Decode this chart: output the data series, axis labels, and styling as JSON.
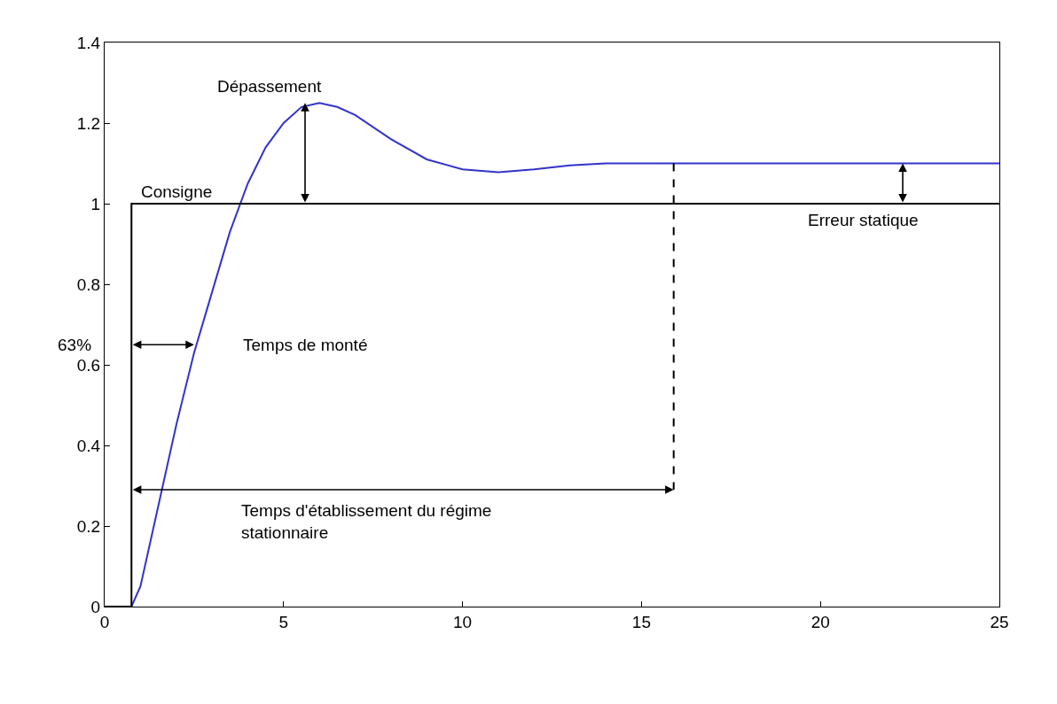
{
  "chart_data": {
    "type": "line",
    "xlim": [
      0,
      25
    ],
    "ylim": [
      0,
      1.4
    ],
    "xticks": [
      0,
      5,
      10,
      15,
      20,
      25
    ],
    "yticks": [
      0,
      0.2,
      0.4,
      0.6,
      0.8,
      1,
      1.2,
      1.4
    ],
    "grid": false,
    "series": [
      {
        "color": "#3333cc",
        "x": [
          0,
          0.75,
          1.0,
          1.5,
          2,
          2.5,
          3,
          3.5,
          4,
          4.5,
          5,
          5.5,
          6,
          6.5,
          7,
          8,
          9,
          10,
          11,
          12,
          13,
          14,
          16,
          20,
          25
        ],
        "values": [
          0,
          0,
          0.05,
          0.25,
          0.45,
          0.63,
          0.78,
          0.93,
          1.05,
          1.14,
          1.2,
          1.24,
          1.25,
          1.24,
          1.22,
          1.16,
          1.11,
          1.085,
          1.078,
          1.085,
          1.095,
          1.1,
          1.1,
          1.1,
          1.1
        ]
      },
      {
        "type": "step",
        "color": "#000000",
        "x": [
          0,
          0.75,
          25
        ],
        "values": [
          0,
          1,
          1
        ]
      },
      {
        "color": "#000000",
        "x": [
          15.9,
          15.9
        ],
        "values": [
          1.1,
          0.29
        ],
        "line_style": "dashed"
      }
    ],
    "annotations": [
      {
        "text": "Dépassement",
        "x": 5.6,
        "y": 1.25
      },
      "Consigne",
      "Erreur statique",
      "63%",
      "Temps de monté",
      "Temps d'établissement du régime\nstationnaire"
    ]
  }
}
